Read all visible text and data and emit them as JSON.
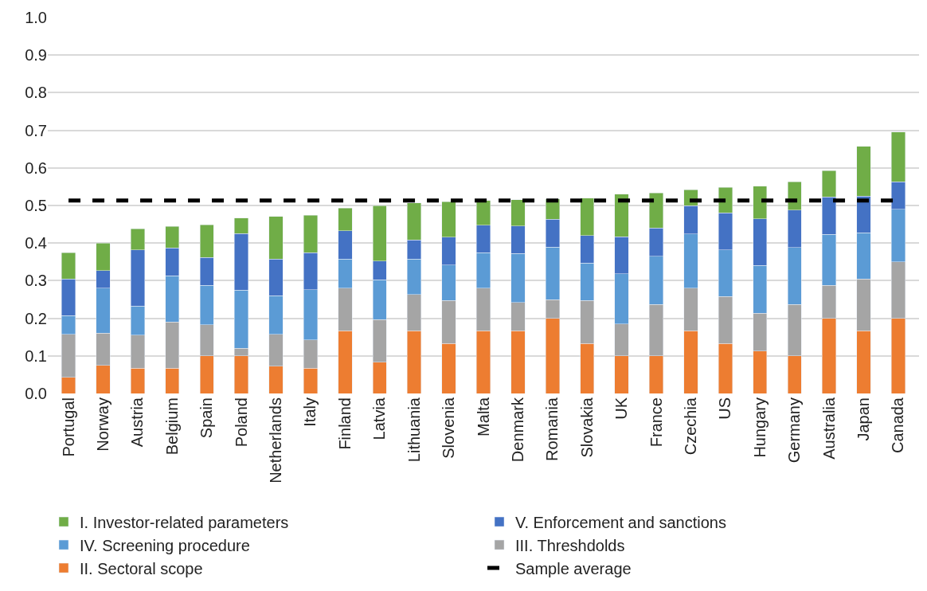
{
  "chart_data": {
    "type": "bar",
    "stacked": true,
    "categories": [
      "Portugal",
      "Norway",
      "Austria",
      "Belgium",
      "Spain",
      "Poland",
      "Netherlands",
      "Italy",
      "Finland",
      "Latvia",
      "Lithuania",
      "Slovenia",
      "Malta",
      "Denmark",
      "Romania",
      "Slovakia",
      "UK",
      "France",
      "Czechia",
      "US",
      "Hungary",
      "Germany",
      "Australia",
      "Japan",
      "Canada"
    ],
    "series": [
      {
        "name": "II. Sectoral scope",
        "color": "#ed7d31",
        "values": [
          0.043,
          0.075,
          0.067,
          0.067,
          0.1,
          0.1,
          0.073,
          0.067,
          0.167,
          0.083,
          0.167,
          0.133,
          0.167,
          0.167,
          0.2,
          0.133,
          0.1,
          0.1,
          0.167,
          0.133,
          0.113,
          0.1,
          0.2,
          0.167,
          0.2
        ]
      },
      {
        "name": "III. Threshdolds",
        "color": "#a5a5a5",
        "values": [
          0.114,
          0.085,
          0.088,
          0.123,
          0.083,
          0.02,
          0.084,
          0.075,
          0.113,
          0.114,
          0.096,
          0.114,
          0.113,
          0.075,
          0.05,
          0.114,
          0.085,
          0.137,
          0.113,
          0.125,
          0.1,
          0.137,
          0.088,
          0.138,
          0.15
        ]
      },
      {
        "name": "IV. Screening procedure",
        "color": "#5b9bd5",
        "values": [
          0.05,
          0.12,
          0.078,
          0.123,
          0.105,
          0.155,
          0.103,
          0.134,
          0.078,
          0.105,
          0.095,
          0.095,
          0.094,
          0.13,
          0.139,
          0.1,
          0.133,
          0.128,
          0.144,
          0.124,
          0.128,
          0.151,
          0.135,
          0.122,
          0.14
        ]
      },
      {
        "name": "V. Enforcement and sanctions",
        "color": "#4472c4",
        "values": [
          0.098,
          0.047,
          0.149,
          0.074,
          0.074,
          0.15,
          0.098,
          0.099,
          0.075,
          0.05,
          0.05,
          0.074,
          0.074,
          0.073,
          0.074,
          0.073,
          0.099,
          0.075,
          0.076,
          0.098,
          0.124,
          0.1,
          0.1,
          0.098,
          0.073
        ]
      },
      {
        "name": "I. Investor-related parameters",
        "color": "#70ad47",
        "values": [
          0.07,
          0.073,
          0.056,
          0.057,
          0.087,
          0.042,
          0.113,
          0.099,
          0.06,
          0.148,
          0.099,
          0.094,
          0.065,
          0.07,
          0.055,
          0.1,
          0.113,
          0.093,
          0.042,
          0.068,
          0.086,
          0.075,
          0.07,
          0.132,
          0.132
        ]
      }
    ],
    "ref_lines": [
      {
        "axis": "y",
        "value": 0.513,
        "label": "Sample average",
        "color": "#000000",
        "line_style": "dashed"
      }
    ],
    "ylim": [
      0,
      1.0
    ],
    "yticks": [
      {
        "value": 0,
        "label": "0.0"
      },
      0.1,
      0.2,
      0.3,
      0.4,
      0.5,
      0.6,
      0.7,
      0.8,
      0.9,
      {
        "value": 1,
        "label": "1.0"
      }
    ],
    "grid": "y",
    "legend": "bottom"
  }
}
